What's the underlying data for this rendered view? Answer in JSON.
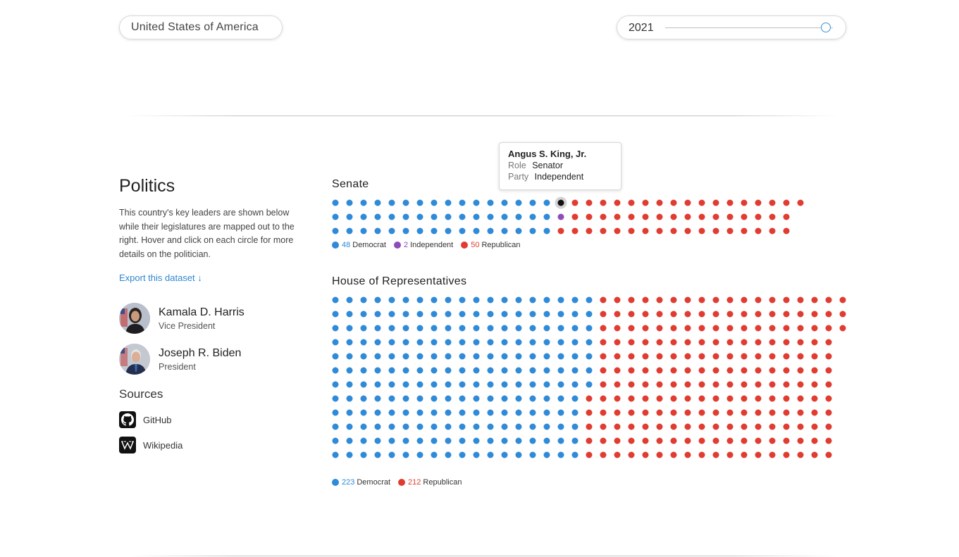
{
  "country_selector": {
    "value": "United States of America"
  },
  "year_slider": {
    "value": "2021",
    "position": 0.96
  },
  "politics": {
    "title": "Politics",
    "description": "This country's key leaders are shown below while their legislatures are mapped out to the right. Hover and click on each circle for more details on the politician.",
    "export_label": "Export this dataset ↓"
  },
  "leaders": [
    {
      "name": "Kamala D. Harris",
      "role": "Vice President"
    },
    {
      "name": "Joseph R. Biden",
      "role": "President"
    }
  ],
  "sources": {
    "title": "Sources",
    "items": [
      {
        "label": "GitHub",
        "icon": "github-icon"
      },
      {
        "label": "Wikipedia",
        "icon": "wikipedia-icon"
      }
    ]
  },
  "colors": {
    "democrat": "#2f8ad8",
    "independent": "#8e4cb8",
    "republican": "#e03c31",
    "hovered": "#111111"
  },
  "senate": {
    "title": "Senate",
    "rows": 3,
    "legend": [
      {
        "count": "48",
        "label": "Democrat",
        "color": "#2f8ad8"
      },
      {
        "count": "2",
        "label": "Independent",
        "color": "#8e4cb8"
      },
      {
        "count": "50",
        "label": "Republican",
        "color": "#e03c31"
      }
    ],
    "hovered_seat": 16
  },
  "house": {
    "title": "House of Representatives",
    "rows": 12,
    "legend": [
      {
        "count": "223",
        "label": "Democrat",
        "color": "#2f8ad8"
      },
      {
        "count": "212",
        "label": "Republican",
        "color": "#e03c31"
      }
    ]
  },
  "tooltip": {
    "name": "Angus S. King, Jr.",
    "role_label": "Role",
    "role_value": "Senator",
    "party_label": "Party",
    "party_value": "Independent"
  }
}
